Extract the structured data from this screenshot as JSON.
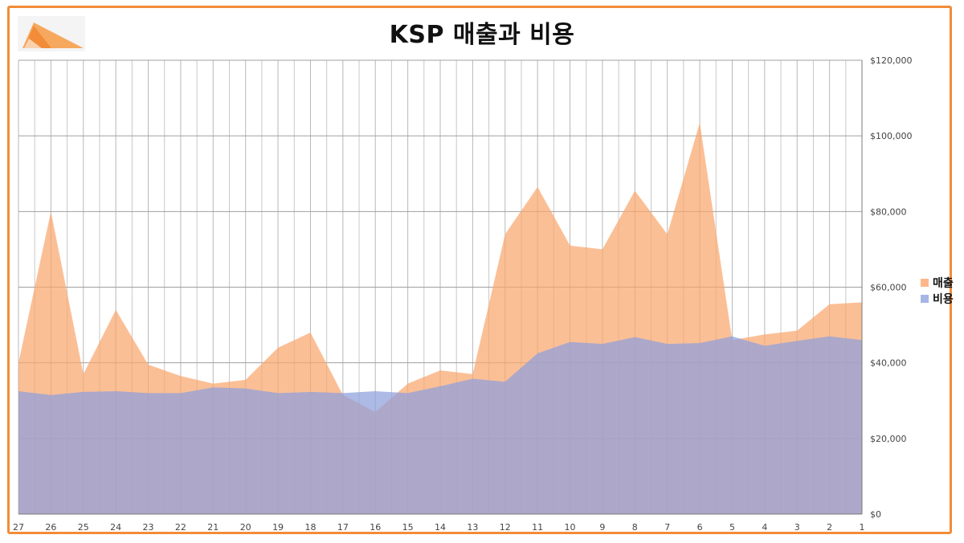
{
  "title": "KSP 매출과 비용",
  "logo": {
    "name": "company-logo",
    "colors": [
      "#f28c38",
      "#f6a95e"
    ]
  },
  "colors": {
    "frame": "#f28c38",
    "sales": "#f9a66e",
    "cost": "#8fa0dc",
    "overlap": "#a9a0b6"
  },
  "legend": [
    {
      "label": "매출",
      "color": "#ffb78a"
    },
    {
      "label": "비용",
      "color": "#a7b5e6"
    }
  ],
  "chart_data": {
    "type": "area",
    "title": "KSP 매출과 비용",
    "x": [
      "27",
      "26",
      "25",
      "24",
      "23",
      "22",
      "21",
      "20",
      "19",
      "18",
      "17",
      "16",
      "15",
      "14",
      "13",
      "12",
      "11",
      "10",
      "9",
      "8",
      "7",
      "6",
      "5",
      "4",
      "3",
      "2",
      "1"
    ],
    "series": [
      {
        "name": "매출",
        "values": [
          40000,
          80000,
          37000,
          54000,
          39500,
          36500,
          34500,
          35500,
          44000,
          48000,
          31500,
          27000,
          34500,
          38000,
          37000,
          74000,
          86500,
          71000,
          70000,
          85500,
          74000,
          103500,
          46000,
          47500,
          48500,
          55500,
          56000
        ]
      },
      {
        "name": "비용",
        "values": [
          32500,
          31500,
          32300,
          32500,
          32000,
          32000,
          33500,
          33200,
          32000,
          32300,
          32000,
          32500,
          32000,
          33800,
          35800,
          35000,
          42500,
          45500,
          45000,
          46800,
          45000,
          45200,
          47000,
          44500,
          45800,
          47000,
          46000
        ]
      }
    ],
    "ylim": [
      0,
      120000
    ],
    "y_ticks": [
      "$0",
      "$20,000",
      "$40,000",
      "$60,000",
      "$80,000",
      "$100,000",
      "$120,000"
    ],
    "y_axis_position": "right",
    "grid": true,
    "legend_position": "right"
  }
}
